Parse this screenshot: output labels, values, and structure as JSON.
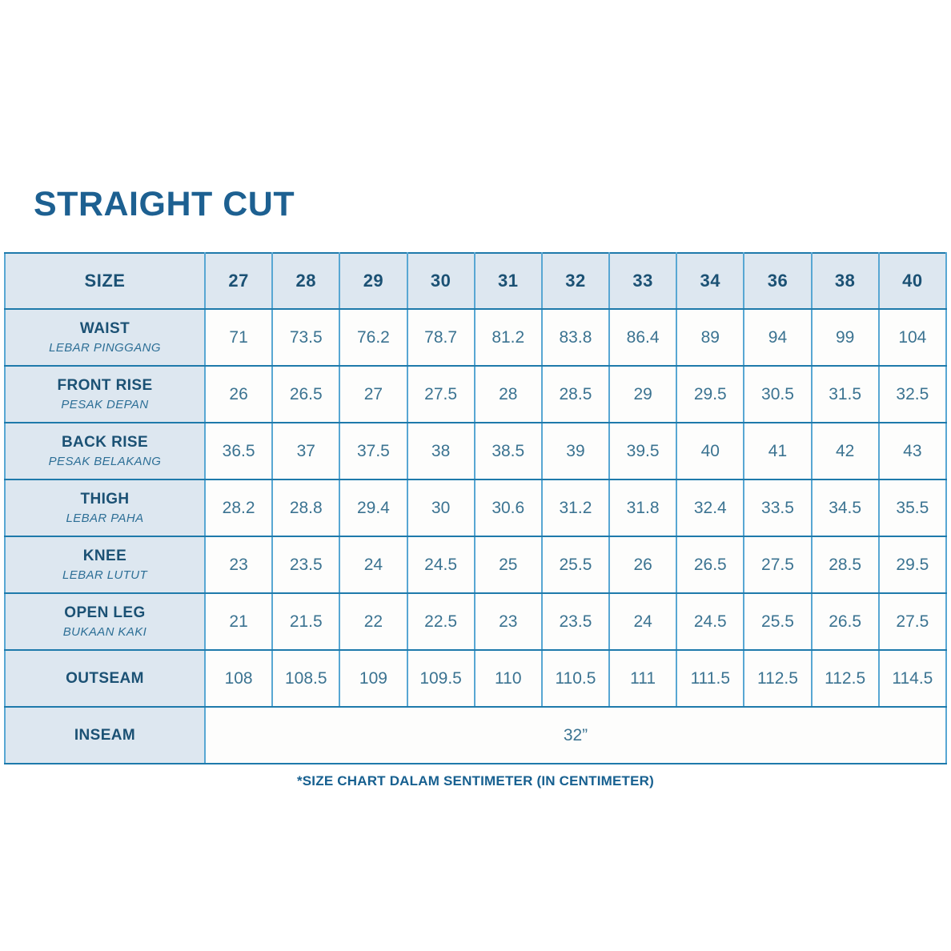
{
  "title": "STRAIGHT CUT",
  "footer": "*SIZE CHART DALAM SENTIMETER (IN CENTIMETER)",
  "colors": {
    "title_text": "#1d6091",
    "header_text": "#1b5174",
    "sublabel_text": "#2d6f96",
    "value_text": "#3b7391",
    "header_bg": "#dde7f0",
    "cell_bg": "#fdfdfc",
    "border_horizontal": "#1e7aab",
    "border_vertical": "#58a7d3"
  },
  "table": {
    "size_header": "SIZE",
    "sizes": [
      "27",
      "28",
      "29",
      "30",
      "31",
      "32",
      "33",
      "34",
      "36",
      "38",
      "40"
    ],
    "rows": [
      {
        "label": "WAIST",
        "sublabel": "LEBAR PINGGANG",
        "values": [
          "71",
          "73.5",
          "76.2",
          "78.7",
          "81.2",
          "83.8",
          "86.4",
          "89",
          "94",
          "99",
          "104"
        ]
      },
      {
        "label": "FRONT RISE",
        "sublabel": "PESAK DEPAN",
        "values": [
          "26",
          "26.5",
          "27",
          "27.5",
          "28",
          "28.5",
          "29",
          "29.5",
          "30.5",
          "31.5",
          "32.5"
        ]
      },
      {
        "label": "BACK RISE",
        "sublabel": "PESAK BELAKANG",
        "values": [
          "36.5",
          "37",
          "37.5",
          "38",
          "38.5",
          "39",
          "39.5",
          "40",
          "41",
          "42",
          "43"
        ]
      },
      {
        "label": "THIGH",
        "sublabel": "LEBAR PAHA",
        "values": [
          "28.2",
          "28.8",
          "29.4",
          "30",
          "30.6",
          "31.2",
          "31.8",
          "32.4",
          "33.5",
          "34.5",
          "35.5"
        ]
      },
      {
        "label": "KNEE",
        "sublabel": "LEBAR LUTUT",
        "values": [
          "23",
          "23.5",
          "24",
          "24.5",
          "25",
          "25.5",
          "26",
          "26.5",
          "27.5",
          "28.5",
          "29.5"
        ]
      },
      {
        "label": "OPEN LEG",
        "sublabel": "BUKAAN KAKI",
        "values": [
          "21",
          "21.5",
          "22",
          "22.5",
          "23",
          "23.5",
          "24",
          "24.5",
          "25.5",
          "26.5",
          "27.5"
        ]
      },
      {
        "label": "OUTSEAM",
        "sublabel": "",
        "values": [
          "108",
          "108.5",
          "109",
          "109.5",
          "110",
          "110.5",
          "111",
          "111.5",
          "112.5",
          "112.5",
          "114.5"
        ]
      }
    ],
    "inseam": {
      "label": "INSEAM",
      "value": "32”"
    }
  }
}
